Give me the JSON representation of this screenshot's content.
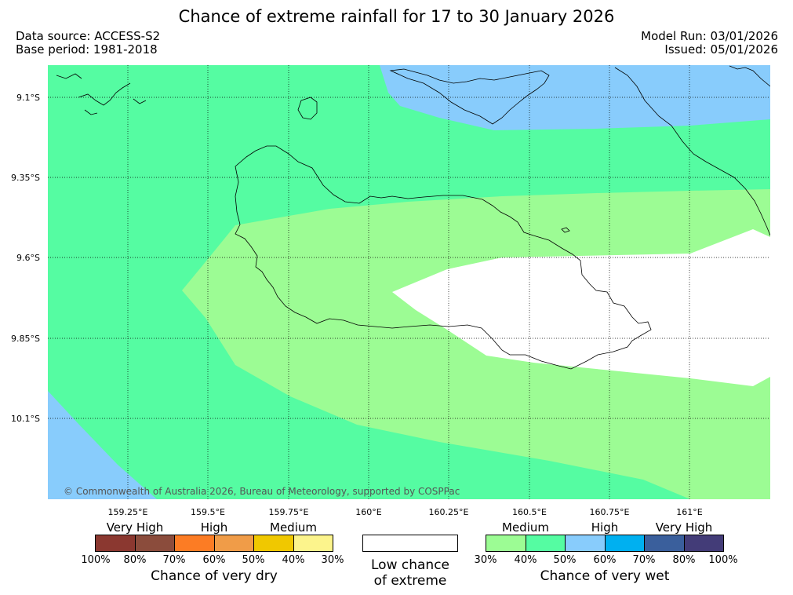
{
  "title": "Chance of extreme rainfall for 17 to 30 January 2026",
  "data_source": "Data source: ACCESS-S2",
  "base_period": "Base period: 1981-2018",
  "model_run": "Model Run: 03/01/2026",
  "issued": "Issued: 05/01/2026",
  "copyright": "© Commonwealth of Australia 2026, Bureau of Meteorology, supported by COSPPac",
  "lat_labels": [
    "9.1°S",
    "9.35°S",
    "9.6°S",
    "9.85°S",
    "10.1°S"
  ],
  "lon_labels": [
    "159.25°E",
    "159.5°E",
    "159.75°E",
    "160°E",
    "160.25°E",
    "160.5°E",
    "160.75°E",
    "161°E"
  ],
  "colors": {
    "wet_medium": "#9cfc94",
    "wet_medium_high": "#55fca2",
    "wet_high": "#88ccfc",
    "wet_very_high_1": "#00b0f0",
    "wet_very_high_2": "#3a5f9c",
    "wet_very_high_3": "#433c78",
    "dry_very_high_1": "#8b3830",
    "dry_very_high_2": "#8b4c3c",
    "dry_high_1": "#fc7c24",
    "dry_high_2": "#f09c48",
    "dry_medium_1": "#f0c800",
    "dry_medium_2": "#fcf48c",
    "low_chance": "#ffffff"
  },
  "legend_dry": {
    "headings": [
      "Very High",
      "High",
      "Medium"
    ],
    "ticks": [
      "100%",
      "80%",
      "70%",
      "60%",
      "50%",
      "40%",
      "30%"
    ],
    "title": "Chance of very dry"
  },
  "legend_low": {
    "line1": "Low chance",
    "line2": "of extreme"
  },
  "legend_wet": {
    "headings": [
      "Medium",
      "High",
      "Very High"
    ],
    "ticks": [
      "30%",
      "40%",
      "50%",
      "60%",
      "70%",
      "80%",
      "100%"
    ],
    "title": "Chance of very wet"
  }
}
